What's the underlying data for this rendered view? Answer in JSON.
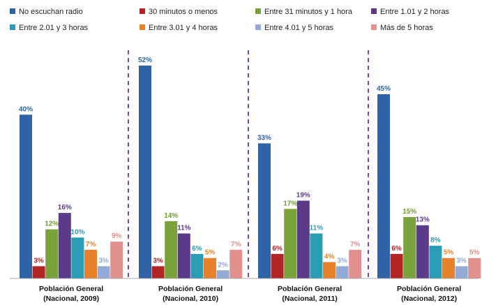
{
  "chart_data": {
    "type": "bar",
    "categories": [
      [
        "Población General",
        "(Nacional, 2009)"
      ],
      [
        "Población General",
        "(Nacional, 2010)"
      ],
      [
        "Población General",
        "(Nacional, 2011)"
      ],
      [
        "Población General",
        "(Nacional, 2012)"
      ]
    ],
    "series": [
      {
        "name": "No escuchan radio",
        "color": "#2e63a5",
        "label_color": "#2e63a5",
        "values": [
          40,
          52,
          33,
          45
        ],
        "labels": [
          "40%",
          "52%",
          "33%",
          "45%"
        ]
      },
      {
        "name": "30 minutos o menos",
        "color": "#b32424",
        "label_color": "#b32424",
        "values": [
          3,
          3,
          6,
          6
        ],
        "labels": [
          "3%",
          "3%",
          "6%",
          "6%"
        ]
      },
      {
        "name": "Entre 31 minutos y 1 hora",
        "color": "#79a23a",
        "label_color": "#6f9a2e",
        "values": [
          12,
          14,
          17,
          15
        ],
        "labels": [
          "12%",
          "14%",
          "17%",
          "15%"
        ]
      },
      {
        "name": "Entre 1.01 y 2 horas",
        "color": "#5c3a8a",
        "label_color": "#5c3a8a",
        "values": [
          16,
          11,
          19,
          13
        ],
        "labels": [
          "16%",
          "11%",
          "19%",
          "13%"
        ]
      },
      {
        "name": "Entre 2.01 y 3 horas",
        "color": "#2a9cb3",
        "label_color": "#2a9cb3",
        "values": [
          10,
          6,
          11,
          8
        ],
        "labels": [
          "10%",
          "6%",
          "11%",
          "8%"
        ]
      },
      {
        "name": "Entre 3.01 y 4 horas",
        "color": "#e8822a",
        "label_color": "#e8822a",
        "values": [
          7,
          5,
          4,
          5
        ],
        "labels": [
          "7%",
          "5%",
          "4%",
          "5%"
        ]
      },
      {
        "name": "Entre 4.01 y 5 horas",
        "color": "#93aad6",
        "label_color": "#93aad6",
        "values": [
          3,
          2,
          3,
          3
        ],
        "labels": [
          "3%",
          "2%",
          "3%",
          "3%"
        ]
      },
      {
        "name": "Más de 5 horas",
        "color": "#e2908e",
        "label_color": "#e2908e",
        "values": [
          9,
          7,
          7,
          5
        ],
        "labels": [
          "9%",
          "7%",
          "7%",
          "5%"
        ]
      }
    ],
    "ylim": [
      0,
      60
    ],
    "grid": false,
    "legend_position": "top",
    "separator_color": "#7a4aa0"
  }
}
